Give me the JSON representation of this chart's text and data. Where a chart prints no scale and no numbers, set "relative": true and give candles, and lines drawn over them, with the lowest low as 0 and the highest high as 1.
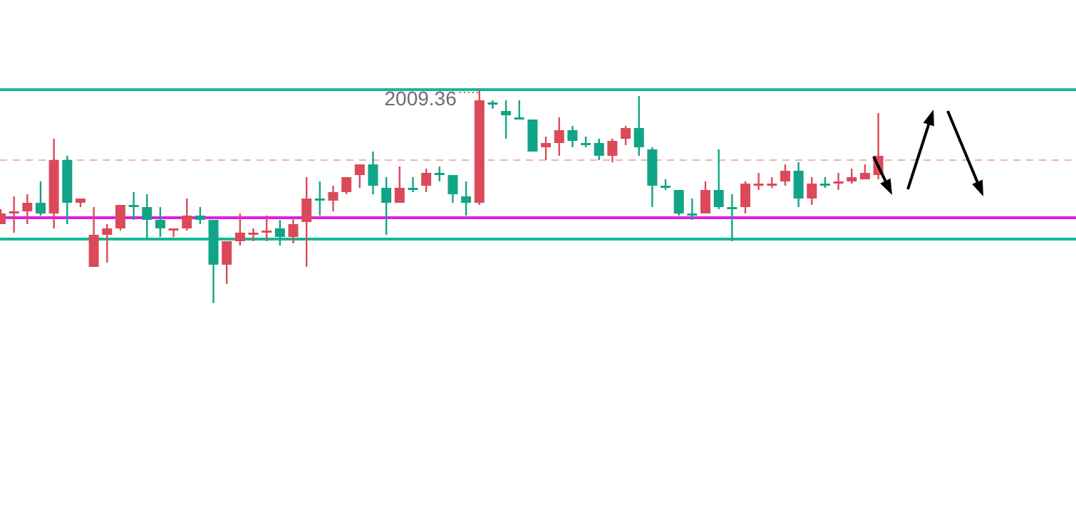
{
  "chart_data": {
    "type": "candlestick",
    "relative": true,
    "categories": [
      null,
      null,
      null,
      null,
      null,
      null,
      null,
      null,
      null,
      null,
      null,
      null,
      null,
      null,
      null,
      null,
      null,
      null,
      null,
      null,
      null,
      null,
      null,
      null,
      null,
      null,
      null,
      null,
      null,
      null,
      null,
      null,
      null,
      null,
      null,
      null,
      null,
      null,
      null,
      null,
      null,
      null,
      null,
      null,
      null,
      null,
      null,
      null,
      null,
      null,
      null,
      null,
      null,
      null,
      null,
      null,
      null,
      null,
      null,
      null,
      null,
      null,
      null,
      null,
      null,
      null,
      null
    ],
    "ohlc": [
      [
        0.37,
        0.44,
        0.37,
        0.42
      ],
      [
        0.43,
        0.5,
        0.33,
        0.43
      ],
      [
        0.43,
        0.51,
        0.37,
        0.47
      ],
      [
        0.47,
        0.57,
        0.41,
        0.42
      ],
      [
        0.42,
        0.77,
        0.35,
        0.67
      ],
      [
        0.67,
        0.69,
        0.37,
        0.47
      ],
      [
        0.47,
        0.49,
        0.45,
        0.49
      ],
      [
        0.17,
        0.45,
        0.17,
        0.32
      ],
      [
        0.32,
        0.37,
        0.19,
        0.35
      ],
      [
        0.35,
        0.46,
        0.34,
        0.46
      ],
      [
        0.46,
        0.52,
        0.39,
        0.45
      ],
      [
        0.45,
        0.51,
        0.3,
        0.39
      ],
      [
        0.39,
        0.45,
        0.31,
        0.35
      ],
      [
        0.34,
        0.35,
        0.31,
        0.35
      ],
      [
        0.35,
        0.49,
        0.34,
        0.41
      ],
      [
        0.41,
        0.45,
        0.37,
        0.39
      ],
      [
        0.39,
        0.39,
        0,
        0.18
      ],
      [
        0.18,
        0.29,
        0.09,
        0.29
      ],
      [
        0.29,
        0.42,
        0.27,
        0.33
      ],
      [
        0.32,
        0.35,
        0.29,
        0.33
      ],
      [
        0.33,
        0.41,
        0.29,
        0.34
      ],
      [
        0.35,
        0.39,
        0.27,
        0.31
      ],
      [
        0.31,
        0.4,
        0.28,
        0.37
      ],
      [
        0.38,
        0.59,
        0.17,
        0.49
      ],
      [
        0.49,
        0.57,
        0.41,
        0.48
      ],
      [
        0.48,
        0.55,
        0.43,
        0.52
      ],
      [
        0.52,
        0.59,
        0.51,
        0.59
      ],
      [
        0.6,
        0.65,
        0.54,
        0.65
      ],
      [
        0.65,
        0.71,
        0.51,
        0.55
      ],
      [
        0.54,
        0.59,
        0.32,
        0.47
      ],
      [
        0.47,
        0.64,
        0.47,
        0.54
      ],
      [
        0.54,
        0.59,
        0.52,
        0.53
      ],
      [
        0.55,
        0.63,
        0.52,
        0.61
      ],
      [
        0.61,
        0.64,
        0.57,
        0.6
      ],
      [
        0.6,
        0.6,
        0.47,
        0.51
      ],
      [
        0.5,
        0.57,
        0.41,
        0.47
      ],
      [
        0.47,
        1,
        0.46,
        0.95
      ],
      [
        0.94,
        0.95,
        0.91,
        0.93
      ],
      [
        0.9,
        0.95,
        0.77,
        0.88
      ],
      [
        0.87,
        0.95,
        0.86,
        0.86
      ],
      [
        0.86,
        0.86,
        0.71,
        0.71
      ],
      [
        0.73,
        0.78,
        0.67,
        0.75
      ],
      [
        0.75,
        0.87,
        0.69,
        0.81
      ],
      [
        0.81,
        0.83,
        0.73,
        0.76
      ],
      [
        0.75,
        0.78,
        0.73,
        0.74
      ],
      [
        0.75,
        0.77,
        0.67,
        0.69
      ],
      [
        0.69,
        0.77,
        0.66,
        0.76
      ],
      [
        0.77,
        0.83,
        0.74,
        0.82
      ],
      [
        0.82,
        0.97,
        0.69,
        0.73
      ],
      [
        0.72,
        0.73,
        0.45,
        0.55
      ],
      [
        0.55,
        0.58,
        0.53,
        0.54
      ],
      [
        0.53,
        0.53,
        0.41,
        0.42
      ],
      [
        0.42,
        0.49,
        0.39,
        0.41
      ],
      [
        0.42,
        0.57,
        0.42,
        0.53
      ],
      [
        0.53,
        0.72,
        0.44,
        0.45
      ],
      [
        0.45,
        0.51,
        0.29,
        0.44
      ],
      [
        0.45,
        0.57,
        0.42,
        0.56
      ],
      [
        0.55,
        0.61,
        0.53,
        0.56
      ],
      [
        0.55,
        0.59,
        0.54,
        0.56
      ],
      [
        0.57,
        0.65,
        0.55,
        0.62
      ],
      [
        0.62,
        0.66,
        0.45,
        0.49
      ],
      [
        0.49,
        0.59,
        0.46,
        0.56
      ],
      [
        0.56,
        0.59,
        0.54,
        0.55
      ],
      [
        0.56,
        0.61,
        0.53,
        0.57
      ],
      [
        0.57,
        0.63,
        0.56,
        0.59
      ],
      [
        0.58,
        0.65,
        0.58,
        0.61
      ],
      [
        0.6,
        0.89,
        0.58,
        0.69
      ]
    ],
    "colors": [
      "#db4a5a",
      "#db4a5a",
      "#db4a5a",
      "#11a486",
      "#db4a5a",
      "#11a486",
      "#db4a5a",
      "#db4a5a",
      "#db4a5a",
      "#db4a5a",
      "#11a486",
      "#11a486",
      "#11a486",
      "#db4a5a",
      "#db4a5a",
      "#11a486",
      "#11a486",
      "#db4a5a",
      "#db4a5a",
      "#db4a5a",
      "#db4a5a",
      "#11a486",
      "#db4a5a",
      "#db4a5a",
      "#11a486",
      "#db4a5a",
      "#db4a5a",
      "#db4a5a",
      "#11a486",
      "#11a486",
      "#db4a5a",
      "#11a486",
      "#db4a5a",
      "#11a486",
      "#11a486",
      "#11a486",
      "#db4a5a",
      "#11a486",
      "#11a486",
      "#11a486",
      "#11a486",
      "#db4a5a",
      "#db4a5a",
      "#11a486",
      "#11a486",
      "#11a486",
      "#db4a5a",
      "#db4a5a",
      "#11a486",
      "#11a486",
      "#11a486",
      "#11a486",
      "#11a486",
      "#db4a5a",
      "#11a486",
      "#11a486",
      "#db4a5a",
      "#db4a5a",
      "#db4a5a",
      "#db4a5a",
      "#11a486",
      "#db4a5a",
      "#11a486",
      "#db4a5a",
      "#db4a5a",
      "#db4a5a",
      "#db4a5a"
    ],
    "ref_lines": [
      {
        "axis": "y",
        "value": 1,
        "color": "#16b896",
        "line_style": "solid"
      },
      {
        "axis": "y",
        "value": 0.3,
        "color": "#16b896",
        "line_style": "solid"
      },
      {
        "axis": "y",
        "value": 0.4,
        "color": "#e31ae3",
        "line_style": "solid"
      },
      {
        "axis": "y",
        "value": 0.67,
        "color": "#f2b0b0",
        "line_style": "dashed"
      }
    ],
    "annotations": [
      "2009.36"
    ]
  }
}
